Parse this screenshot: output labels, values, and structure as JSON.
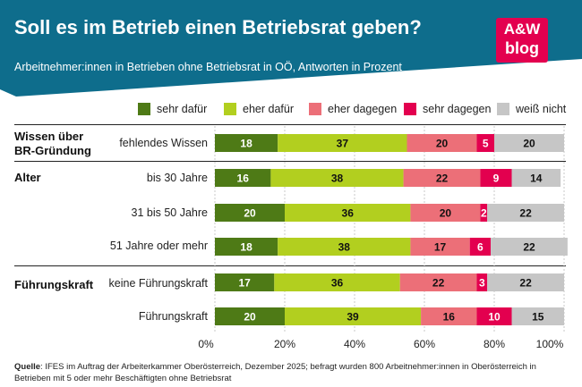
{
  "header": {
    "title": "Soll es im Betrieb einen Betriebsrat geben?",
    "subtitle": "Arbeitnehmer:innen in Betrieben ohne Betriebsrat in OÖ, Antworten in Prozent",
    "logo_line1": "A&W",
    "logo_line2": "blog"
  },
  "colors": {
    "header_bg": "#0e6d8c",
    "sehr_dafuer": "#4e7a16",
    "eher_dafuer": "#b2cf1f",
    "eher_dagegen": "#ec6f78",
    "sehr_dagegen": "#e3004f",
    "weiss_nicht": "#c6c6c6"
  },
  "groups": [
    {
      "label": "Wissen über BR-Gründung",
      "label_line1": "Wissen über",
      "label_line2": "BR-Gründung"
    },
    {
      "label": "Alter",
      "label_line1": "Alter",
      "label_line2": ""
    },
    {
      "label": "Führungskraft",
      "label_line1": "Führungskraft",
      "label_line2": ""
    }
  ],
  "footnote": {
    "label": "Quelle",
    "text": ": IFES im Auftrag der Arbeiterkammer Oberösterreich, Dezember 2025; befragt wurden 800 Arbeitnehmer:innen in Oberösterreich in Betrieben mit 5 oder mehr Beschäftigten ohne Betriebsrat"
  },
  "chart_data": {
    "type": "bar",
    "orientation": "horizontal",
    "stacked": true,
    "title": "Soll es im Betrieb einen Betriebsrat geben?",
    "subtitle": "Arbeitnehmer:innen in Betrieben ohne Betriebsrat in OÖ, Antworten in Prozent",
    "categories": [
      "fehlendes Wissen",
      "bis 30 Jahre",
      "31 bis 50 Jahre",
      "51 Jahre oder mehr",
      "keine Führungskraft",
      "Führungskraft"
    ],
    "series": [
      {
        "name": "sehr dafür",
        "color": "#4e7a16",
        "values": [
          18,
          16,
          20,
          18,
          17,
          20
        ]
      },
      {
        "name": "eher dafür",
        "color": "#b2cf1f",
        "values": [
          37,
          38,
          36,
          38,
          36,
          39
        ]
      },
      {
        "name": "eher dagegen",
        "color": "#ec6f78",
        "values": [
          20,
          22,
          20,
          17,
          22,
          16
        ]
      },
      {
        "name": "sehr dagegen",
        "color": "#e3004f",
        "values": [
          5,
          9,
          2,
          6,
          3,
          10
        ]
      },
      {
        "name": "weiß nicht",
        "color": "#c6c6c6",
        "values": [
          20,
          14,
          22,
          22,
          22,
          15
        ]
      }
    ],
    "xlim": [
      0,
      100
    ],
    "xticks": [
      "0%",
      "20%",
      "40%",
      "60%",
      "80%",
      "100%"
    ],
    "legend": "top",
    "grid": true
  }
}
